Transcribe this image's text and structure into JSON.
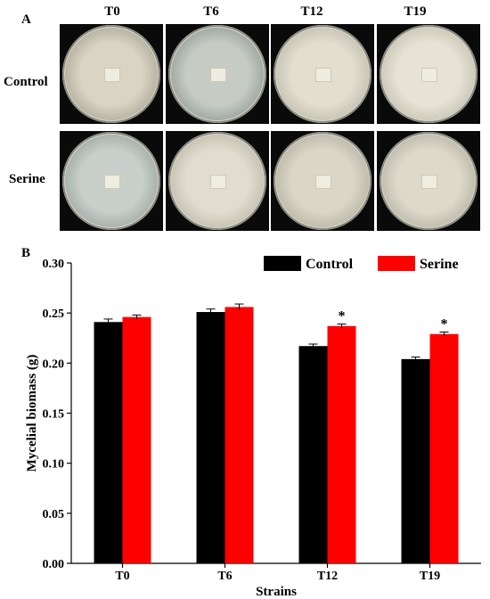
{
  "panel_a": {
    "letter": "A",
    "columns": [
      "T0",
      "T6",
      "T12",
      "T19"
    ],
    "rows": [
      {
        "label": "Control",
        "dishes": [
          {
            "center": "#d9d4c4",
            "edge": "#9a9686"
          },
          {
            "center": "#c6ccc4",
            "edge": "#7f8a86"
          },
          {
            "center": "#e2ded0",
            "edge": "#b4b0a0"
          },
          {
            "center": "#e6e3d6",
            "edge": "#b8b4a4"
          }
        ]
      },
      {
        "label": "Serine",
        "dishes": [
          {
            "center": "#c9cfca",
            "edge": "#8b9792"
          },
          {
            "center": "#e0dccf",
            "edge": "#b3ae9e"
          },
          {
            "center": "#dbd7c8",
            "edge": "#a8a494"
          },
          {
            "center": "#ddd9cb",
            "edge": "#aaa696"
          }
        ]
      }
    ]
  },
  "chart_data": {
    "panel_letter": "B",
    "type": "bar",
    "categories": [
      "T0",
      "T6",
      "T12",
      "T19"
    ],
    "series": [
      {
        "name": "Control",
        "color": "#000000",
        "values": [
          0.241,
          0.251,
          0.217,
          0.204
        ],
        "errors": [
          0.003,
          0.003,
          0.002,
          0.002
        ]
      },
      {
        "name": "Serine",
        "color": "#ff0000",
        "values": [
          0.246,
          0.256,
          0.237,
          0.229
        ],
        "errors": [
          0.002,
          0.003,
          0.002,
          0.002
        ]
      }
    ],
    "annotations": [
      {
        "category": "T12",
        "series": "Serine",
        "text": "*"
      },
      {
        "category": "T19",
        "series": "Serine",
        "text": "*"
      }
    ],
    "xlabel": "Strains",
    "ylabel": "Mycelial biomass (g)",
    "ylim": [
      0.0,
      0.3
    ],
    "yticks": [
      "0.00",
      "0.05",
      "0.10",
      "0.15",
      "0.20",
      "0.25",
      "0.30"
    ],
    "legend_position": "top-right",
    "grid": false
  }
}
